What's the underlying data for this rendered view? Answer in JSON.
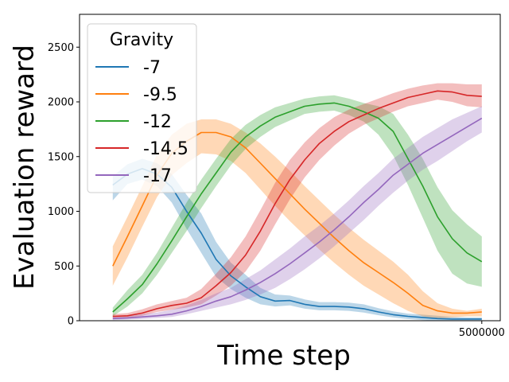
{
  "chart_data": {
    "type": "line",
    "xlabel": "Time step",
    "ylabel": "Evaluation reward",
    "xlim": [
      -450000,
      5250000
    ],
    "ylim": [
      0,
      2800
    ],
    "xticks": [
      5000000
    ],
    "xtick_labels": [
      "5000000"
    ],
    "yticks": [
      0,
      500,
      1000,
      1500,
      2000,
      2500
    ],
    "ytick_labels": [
      "0",
      "500",
      "1000",
      "1500",
      "2000",
      "2500"
    ],
    "grid": false,
    "legend": {
      "title": "Gravity",
      "placement": "top-left"
    },
    "series": [
      {
        "name": "-7",
        "color": "#1f77b4",
        "x": [
          0,
          200000,
          400000,
          600000,
          800000,
          1000000,
          1200000,
          1400000,
          1600000,
          1800000,
          2000000,
          2200000,
          2400000,
          2600000,
          2800000,
          3000000,
          3200000,
          3400000,
          3600000,
          3800000,
          4000000,
          4200000,
          4400000,
          4600000,
          4800000,
          5000000
        ],
        "y": [
          1240,
          1340,
          1390,
          1340,
          1220,
          1000,
          800,
          560,
          410,
          310,
          220,
          180,
          185,
          150,
          130,
          130,
          125,
          110,
          80,
          55,
          40,
          30,
          20,
          15,
          15,
          15
        ],
        "lower": [
          1100,
          1250,
          1290,
          1230,
          1080,
          840,
          620,
          400,
          290,
          210,
          150,
          130,
          140,
          110,
          95,
          95,
          90,
          75,
          50,
          30,
          15,
          5,
          0,
          0,
          0,
          0
        ],
        "upper": [
          1320,
          1430,
          1480,
          1440,
          1340,
          1150,
          980,
          720,
          530,
          420,
          300,
          240,
          230,
          195,
          170,
          170,
          165,
          150,
          115,
          85,
          65,
          55,
          45,
          35,
          30,
          30
        ]
      },
      {
        "name": "-9.5",
        "color": "#ff7f0e",
        "x": [
          0,
          200000,
          400000,
          600000,
          800000,
          1000000,
          1200000,
          1400000,
          1600000,
          1800000,
          2000000,
          2200000,
          2400000,
          2600000,
          2800000,
          3000000,
          3200000,
          3400000,
          3600000,
          3800000,
          4000000,
          4200000,
          4400000,
          4600000,
          4800000,
          5000000
        ],
        "y": [
          500,
          770,
          1050,
          1330,
          1530,
          1640,
          1720,
          1720,
          1680,
          1580,
          1440,
          1300,
          1160,
          1020,
          890,
          760,
          640,
          530,
          440,
          350,
          250,
          140,
          90,
          70,
          70,
          80
        ],
        "lower": [
          320,
          580,
          860,
          1130,
          1330,
          1440,
          1530,
          1520,
          1460,
          1350,
          1200,
          1050,
          910,
          780,
          650,
          530,
          420,
          320,
          240,
          160,
          90,
          40,
          20,
          30,
          40,
          40
        ],
        "upper": [
          680,
          950,
          1230,
          1520,
          1700,
          1800,
          1840,
          1840,
          1800,
          1720,
          1620,
          1500,
          1370,
          1230,
          1100,
          970,
          850,
          740,
          640,
          540,
          420,
          270,
          160,
          110,
          90,
          110
        ]
      },
      {
        "name": "-12",
        "color": "#2ca02c",
        "x": [
          0,
          200000,
          400000,
          600000,
          800000,
          1000000,
          1200000,
          1400000,
          1600000,
          1800000,
          2000000,
          2200000,
          2400000,
          2600000,
          2800000,
          3000000,
          3200000,
          3400000,
          3600000,
          3800000,
          4000000,
          4200000,
          4400000,
          4600000,
          4800000,
          5000000
        ],
        "y": [
          80,
          200,
          330,
          520,
          730,
          950,
          1160,
          1350,
          1540,
          1680,
          1780,
          1860,
          1910,
          1960,
          1980,
          1990,
          1960,
          1910,
          1850,
          1730,
          1480,
          1230,
          950,
          750,
          620,
          540
        ],
        "lower": [
          40,
          130,
          250,
          420,
          620,
          820,
          1030,
          1230,
          1420,
          1570,
          1680,
          1770,
          1830,
          1890,
          1910,
          1920,
          1880,
          1820,
          1700,
          1510,
          1240,
          940,
          640,
          430,
          340,
          310
        ],
        "upper": [
          120,
          280,
          420,
          620,
          850,
          1080,
          1290,
          1480,
          1660,
          1790,
          1880,
          1950,
          1990,
          2030,
          2050,
          2060,
          2030,
          1990,
          1960,
          1890,
          1700,
          1480,
          1220,
          1010,
          880,
          770
        ]
      },
      {
        "name": "-14.5",
        "color": "#d62728",
        "x": [
          0,
          200000,
          400000,
          600000,
          800000,
          1000000,
          1200000,
          1400000,
          1600000,
          1800000,
          2000000,
          2200000,
          2400000,
          2600000,
          2800000,
          3000000,
          3200000,
          3400000,
          3600000,
          3800000,
          4000000,
          4200000,
          4400000,
          4600000,
          4800000,
          5000000
        ],
        "y": [
          40,
          45,
          70,
          110,
          140,
          160,
          210,
          320,
          440,
          600,
          820,
          1070,
          1290,
          1470,
          1620,
          1730,
          1820,
          1880,
          1940,
          1990,
          2040,
          2070,
          2100,
          2090,
          2060,
          2050
        ],
        "lower": [
          20,
          25,
          45,
          80,
          100,
          120,
          150,
          230,
          320,
          450,
          640,
          880,
          1110,
          1310,
          1470,
          1600,
          1710,
          1790,
          1850,
          1910,
          1960,
          1990,
          2020,
          2000,
          1960,
          1950
        ],
        "upper": [
          60,
          70,
          105,
          150,
          180,
          210,
          290,
          430,
          580,
          770,
          1010,
          1260,
          1470,
          1630,
          1760,
          1860,
          1930,
          1980,
          2030,
          2080,
          2120,
          2150,
          2170,
          2170,
          2160,
          2160
        ]
      },
      {
        "name": "-17",
        "color": "#9467bd",
        "x": [
          0,
          200000,
          400000,
          600000,
          800000,
          1000000,
          1200000,
          1400000,
          1600000,
          1800000,
          2000000,
          2200000,
          2400000,
          2600000,
          2800000,
          3000000,
          3200000,
          3400000,
          3600000,
          3800000,
          4000000,
          4200000,
          4400000,
          4600000,
          4800000,
          5000000
        ],
        "y": [
          20,
          25,
          35,
          45,
          60,
          90,
          130,
          180,
          220,
          280,
          350,
          430,
          520,
          620,
          720,
          830,
          950,
          1080,
          1200,
          1330,
          1430,
          1530,
          1610,
          1690,
          1770,
          1850
        ],
        "lower": [
          5,
          10,
          15,
          25,
          35,
          60,
          90,
          120,
          150,
          190,
          240,
          300,
          380,
          470,
          570,
          680,
          800,
          920,
          1050,
          1170,
          1280,
          1380,
          1460,
          1550,
          1640,
          1720
        ],
        "upper": [
          40,
          45,
          60,
          75,
          100,
          140,
          190,
          250,
          300,
          380,
          460,
          560,
          660,
          770,
          870,
          980,
          1100,
          1230,
          1350,
          1480,
          1580,
          1680,
          1760,
          1840,
          1900,
          1960
        ]
      }
    ]
  }
}
